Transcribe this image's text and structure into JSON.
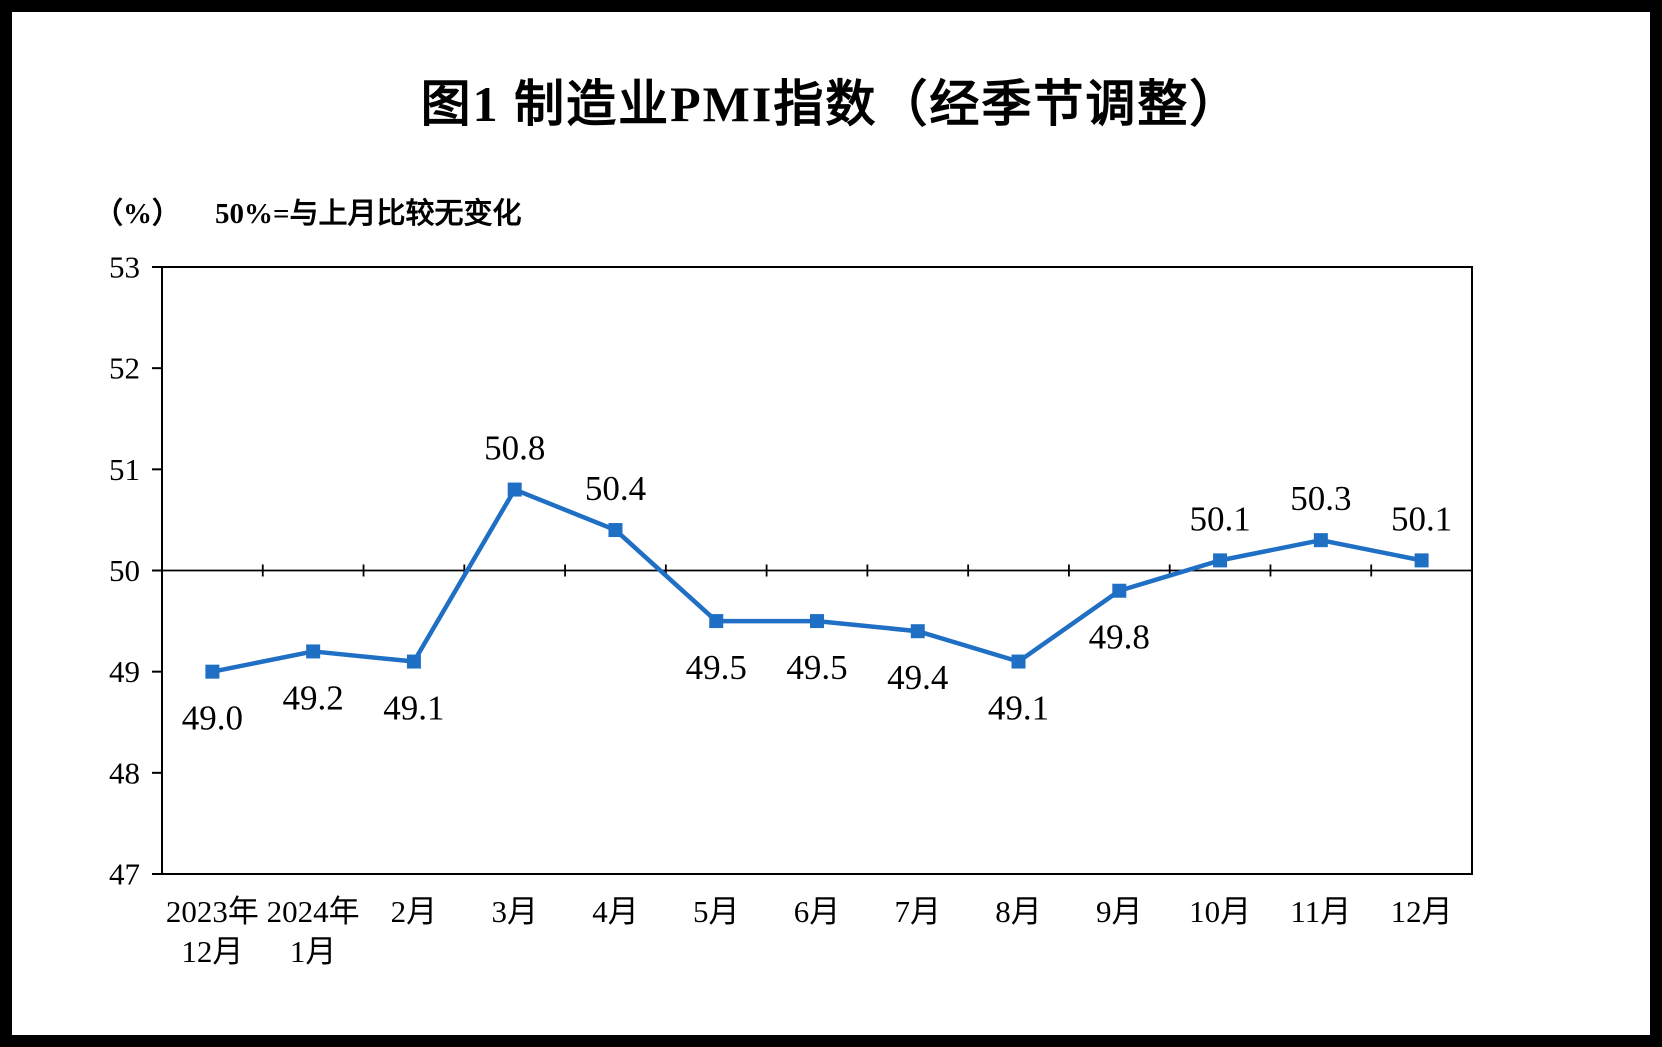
{
  "page": {
    "frame_color": "#000000",
    "background_color": "#ffffff"
  },
  "header": {
    "title": "图1  制造业PMI指数（经季节调整）"
  },
  "chart_data": {
    "type": "line",
    "title": "图1  制造业PMI指数（经季节调整）",
    "unit_label": "（%）",
    "subtitle_note": "50%=与上月比较无变化",
    "categories": [
      [
        "2023年",
        "12月"
      ],
      [
        "2024年",
        "1月"
      ],
      [
        "2月"
      ],
      [
        "3月"
      ],
      [
        "4月"
      ],
      [
        "5月"
      ],
      [
        "6月"
      ],
      [
        "7月"
      ],
      [
        "8月"
      ],
      [
        "9月"
      ],
      [
        "10月"
      ],
      [
        "11月"
      ],
      [
        "12月"
      ]
    ],
    "series": [
      {
        "name": "制造业PMI",
        "values": [
          49.0,
          49.2,
          49.1,
          50.8,
          50.4,
          49.5,
          49.5,
          49.4,
          49.1,
          49.8,
          50.1,
          50.3,
          50.1
        ]
      }
    ],
    "ylim": [
      47,
      53
    ],
    "yticks": [
      47,
      48,
      49,
      50,
      51,
      52,
      53
    ],
    "reference_line": 50,
    "line_color": "#1f6fc5",
    "marker": "square",
    "axis_color": "#000000",
    "label_color": "#000000",
    "grid": false,
    "legend_position": "none",
    "data_label_decimals": 1
  }
}
